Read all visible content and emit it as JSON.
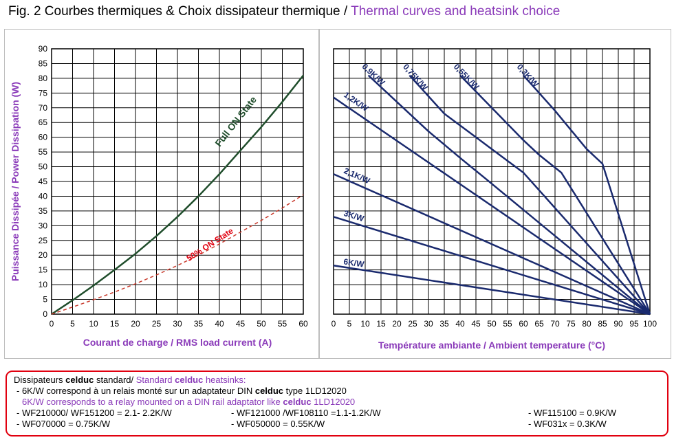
{
  "figure": {
    "title_fr": "Fig. 2 Courbes thermiques & Choix dissipateur thermique",
    "title_sep": " / ",
    "title_en": "Thermal curves and heatsink choice"
  },
  "chart_data": [
    {
      "type": "line",
      "xlabel": "Courant de charge / RMS load current (A)",
      "ylabel": "Puissance Dissipée / Power Dissipation (W)",
      "xlim": [
        0,
        60
      ],
      "ylim": [
        0,
        90
      ],
      "xticks": [
        0,
        5,
        10,
        15,
        20,
        25,
        30,
        35,
        40,
        45,
        50,
        55,
        60
      ],
      "yticks": [
        0,
        5,
        10,
        15,
        20,
        25,
        30,
        35,
        40,
        45,
        50,
        55,
        60,
        65,
        70,
        75,
        80,
        85,
        90
      ],
      "grid": true,
      "series": [
        {
          "name": "Full ON State",
          "color": "#1f4d2b",
          "style": "solid",
          "x": [
            0,
            5,
            10,
            15,
            20,
            25,
            30,
            35,
            40,
            45,
            50,
            55,
            60
          ],
          "y": [
            0,
            4.7,
            9.7,
            15.0,
            20.5,
            26.5,
            33.0,
            40.0,
            47.5,
            55.5,
            63.5,
            72.0,
            81.0
          ]
        },
        {
          "name": "50% ON State",
          "color": "#c8392b",
          "style": "dashed",
          "x": [
            0,
            5,
            10,
            15,
            20,
            25,
            30,
            35,
            40,
            45,
            50,
            55,
            60
          ],
          "y": [
            0,
            2.4,
            4.9,
            7.5,
            10.3,
            13.3,
            16.5,
            20.0,
            23.8,
            27.8,
            31.8,
            36.0,
            40.5
          ]
        }
      ]
    },
    {
      "type": "line",
      "xlabel": "Température ambiante / Ambient temperature (°C)",
      "xlim": [
        0,
        100
      ],
      "ylim": [
        0,
        90
      ],
      "xticks": [
        0,
        5,
        10,
        15,
        20,
        25,
        30,
        35,
        40,
        45,
        50,
        55,
        60,
        65,
        70,
        75,
        80,
        85,
        90,
        95,
        100
      ],
      "yticks": [
        0,
        5,
        10,
        15,
        20,
        25,
        30,
        35,
        40,
        45,
        50,
        55,
        60,
        65,
        70,
        75,
        80,
        85,
        90
      ],
      "grid": true,
      "series": [
        {
          "name": "0,3K/W",
          "color": "#1a2a6e",
          "x": [
            60,
            70,
            80,
            85,
            100
          ],
          "y": [
            81,
            69,
            56,
            51,
            0
          ]
        },
        {
          "name": "0,55K/W",
          "color": "#1a2a6e",
          "x": [
            40,
            50,
            60,
            65,
            72,
            100
          ],
          "y": [
            81,
            70,
            59,
            54,
            48,
            0
          ]
        },
        {
          "name": "0,75K/W",
          "color": "#1a2a6e",
          "x": [
            24,
            35,
            45,
            50,
            55,
            60,
            100
          ],
          "y": [
            81,
            68,
            60,
            56,
            52,
            48,
            0
          ]
        },
        {
          "name": "0,9K/W",
          "color": "#1a2a6e",
          "x": [
            11,
            20,
            30,
            40,
            48,
            100
          ],
          "y": [
            81,
            72,
            62,
            53,
            46,
            0
          ]
        },
        {
          "name": "1,2K/W",
          "color": "#1a2a6e",
          "x": [
            0,
            100
          ],
          "y": [
            73.5,
            0
          ]
        },
        {
          "name": "2,1K/W",
          "color": "#1a2a6e",
          "x": [
            0,
            100
          ],
          "y": [
            47.5,
            0
          ]
        },
        {
          "name": "3K/W",
          "color": "#1a2a6e",
          "x": [
            0,
            100
          ],
          "y": [
            33,
            0
          ]
        },
        {
          "name": "6K/W",
          "color": "#1a2a6e",
          "x": [
            0,
            100
          ],
          "y": [
            16.5,
            0
          ]
        }
      ]
    }
  ],
  "legend": {
    "line1_fr": "Dissipateurs ",
    "line1_brand": "celduc",
    "line1_fr2": " standard/ ",
    "line1_en": "Standard ",
    "line1_brand_en": "celduc",
    "line1_en2": " heatsinks:",
    "line2_a": " - 6K/W correspond à un relais monté sur un adaptateur DIN ",
    "line2_brand": "celduc",
    "line2_b": " type 1LD12020",
    "line3_a": "6K/W corresponds to a relay mounted on a DIN rail adaptator like ",
    "line3_brand": "celduc",
    "line3_b": " 1LD12020",
    "r1c1": " - WF210000/ WF151200 = 2.1- 2.2K/W",
    "r1c2": " - WF121000 /WF108110 =1.1-1.2K/W",
    "r1c3": " - WF115100 = 0.9K/W",
    "r2c1": " - WF070000 = 0.75K/W",
    "r2c2": " - WF050000 = 0.55K/W",
    "r2c3": " - WF031x = 0.3K/W"
  }
}
